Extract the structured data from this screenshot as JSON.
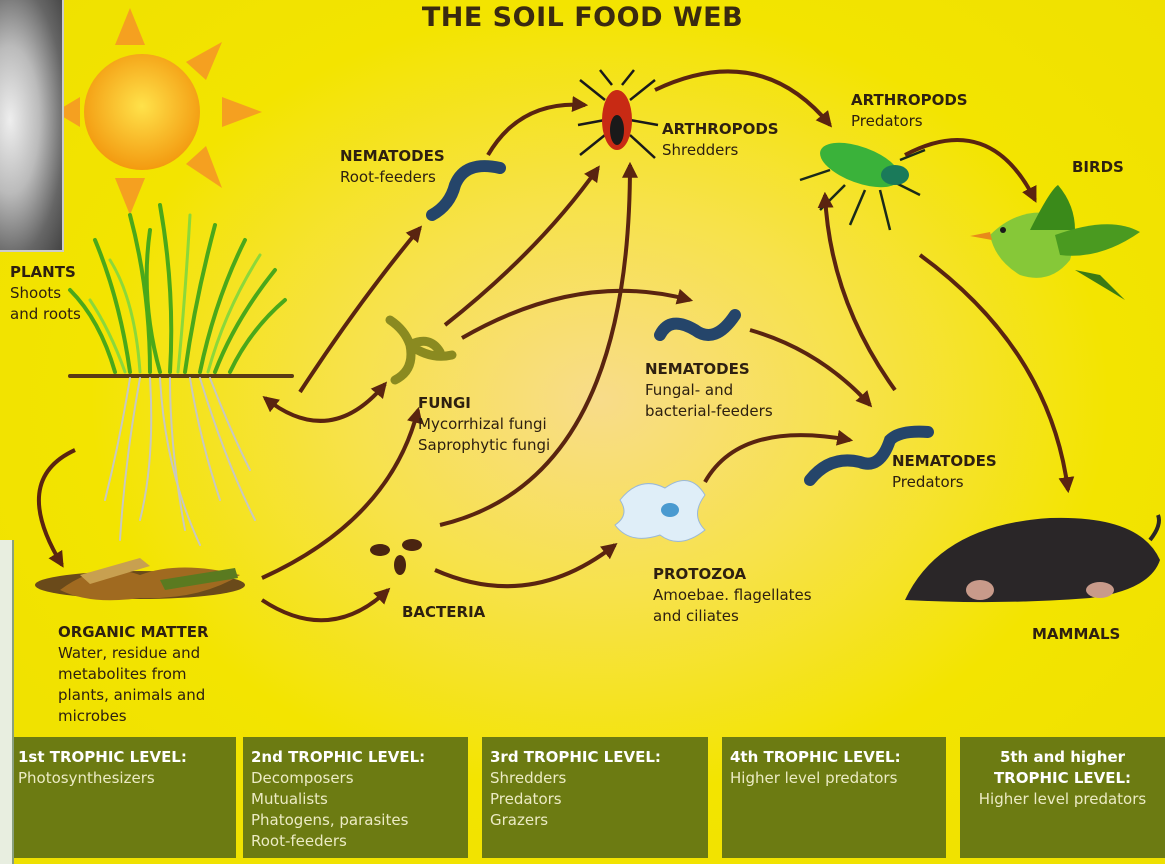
{
  "title": "THE SOIL FOOD WEB",
  "nodes": [
    {
      "label": "PLANTS",
      "lines": [
        "Shoots",
        "and roots"
      ]
    },
    {
      "label": "ORGANIC MATTER",
      "lines": [
        "Water, residue and",
        "metabolites from",
        "plants, animals and",
        "microbes"
      ]
    },
    {
      "label": "NEMATODES",
      "lines": [
        "Root-feeders"
      ]
    },
    {
      "label": "FUNGI",
      "lines": [
        "Mycorrhizal fungi",
        "Saprophytic fungi"
      ]
    },
    {
      "label": "BACTERIA"
    },
    {
      "label": "ARTHROPODS",
      "lines": [
        "Shredders"
      ]
    },
    {
      "label": "NEMATODES",
      "lines": [
        "Fungal- and",
        "bacterial-feeders"
      ]
    },
    {
      "label": "PROTOZOA",
      "lines": [
        "Amoebae. flagellates",
        "and ciliates"
      ]
    },
    {
      "label": "NEMATODES",
      "lines": [
        "Predators"
      ]
    },
    {
      "label": "ARTHROPODS",
      "lines": [
        "Predators"
      ]
    },
    {
      "label": "BIRDS"
    },
    {
      "label": "MAMMALS"
    }
  ],
  "trophic_levels": [
    {
      "title_lines": [
        "1st TROPHIC LEVEL:"
      ],
      "items": [
        "Photosynthesizers"
      ]
    },
    {
      "title_lines": [
        "2nd TROPHIC LEVEL:"
      ],
      "items": [
        "Decomposers",
        "Mutualists",
        "Phatogens, parasites",
        "Root-feeders"
      ]
    },
    {
      "title_lines": [
        "3rd TROPHIC LEVEL:"
      ],
      "items": [
        "Shredders",
        "Predators",
        "Grazers"
      ]
    },
    {
      "title_lines": [
        "4th TROPHIC LEVEL:"
      ],
      "items": [
        "Higher level predators"
      ]
    },
    {
      "title_lines": [
        "5th and higher",
        "TROPHIC LEVEL:"
      ],
      "items": [
        "Higher level predators"
      ]
    }
  ]
}
